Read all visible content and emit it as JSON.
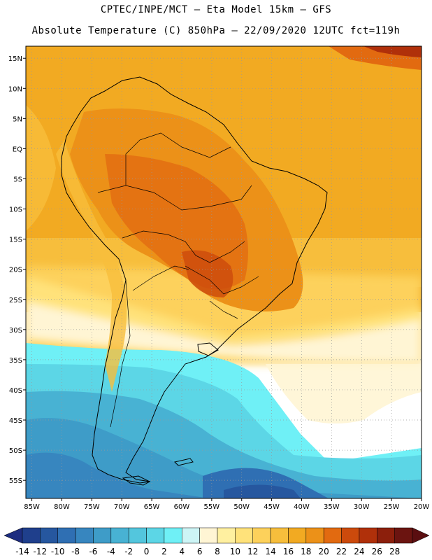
{
  "header": {
    "line1": "CPTEC/INPE/MCT —  Eta Model 15km — GFS",
    "line2": "Absolute Temperature (C) 850hPa — 22/09/2020 12UTC fct=119h"
  },
  "axes": {
    "lat_labels": [
      "15N",
      "10N",
      "5N",
      "EQ",
      "5S",
      "10S",
      "15S",
      "20S",
      "25S",
      "30S",
      "35S",
      "40S",
      "45S",
      "50S",
      "55S"
    ],
    "lat_values": [
      15,
      10,
      5,
      0,
      -5,
      -10,
      -15,
      -20,
      -25,
      -30,
      -35,
      -40,
      -45,
      -50,
      -55
    ],
    "lon_labels": [
      "85W",
      "80W",
      "75W",
      "70W",
      "65W",
      "60W",
      "55W",
      "50W",
      "45W",
      "40W",
      "35W",
      "30W",
      "25W",
      "20W"
    ],
    "lon_values": [
      -85,
      -80,
      -75,
      -70,
      -65,
      -60,
      -55,
      -50,
      -45,
      -40,
      -35,
      -30,
      -25,
      -20
    ],
    "lon_range": [
      -86,
      -20
    ],
    "lat_range": [
      -58,
      17
    ]
  },
  "colorbar": {
    "labels": [
      "-14",
      "-12",
      "-10",
      "-8",
      "-6",
      "-4",
      "-2",
      "0",
      "2",
      "4",
      "6",
      "8",
      "10",
      "12",
      "14",
      "16",
      "18",
      "20",
      "22",
      "24",
      "26",
      "28"
    ],
    "colors": [
      "#1f3f8c",
      "#26579f",
      "#2f6fb3",
      "#3786bf",
      "#3e9cc8",
      "#48b2d3",
      "#53c6dd",
      "#5cd6e6",
      "#6ff0f6",
      "#cdf5f6",
      "#fff5d4",
      "#fff0a0",
      "#ffe27a",
      "#fdd15b",
      "#f7be3c",
      "#f2aa22",
      "#ec9118",
      "#e26a10",
      "#cc4a0c",
      "#b0300a",
      "#8c1f0c",
      "#6b1410"
    ],
    "under_color": "#1d2d80",
    "over_color": "#5a0e10"
  }
}
